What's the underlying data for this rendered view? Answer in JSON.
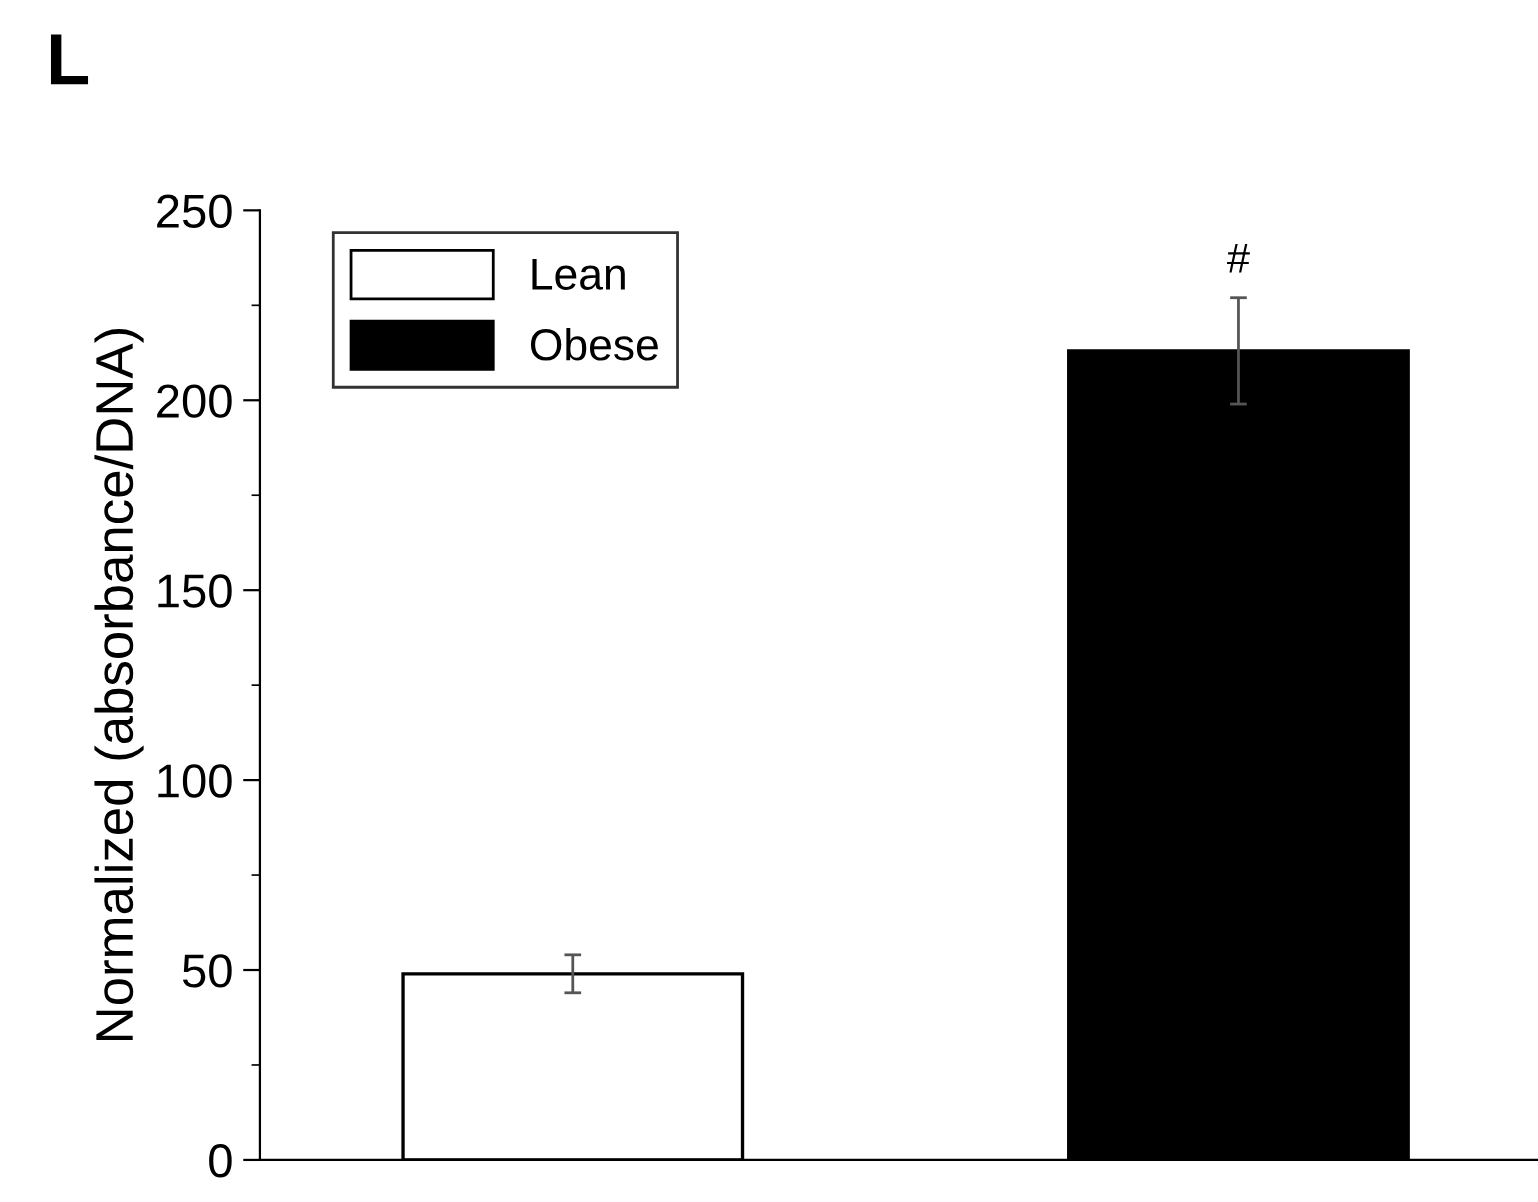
{
  "chart_data": {
    "type": "bar",
    "title": "L",
    "ylabel": "Normalized (absorbance/DNA)",
    "categories": [
      null,
      null
    ],
    "series": [
      {
        "name": "Lean",
        "color": "#ffffff",
        "values": [
          49,
          null
        ],
        "errors": [
          5,
          null
        ]
      },
      {
        "name": "Obese",
        "color": "#000000",
        "values": [
          null,
          213
        ],
        "errors": [
          null,
          14
        ]
      }
    ],
    "ylim": [
      0,
      250
    ],
    "yticks": [
      0,
      50,
      100,
      150,
      200,
      250
    ],
    "grid": false,
    "legend": "top left",
    "annotations": [
      "#"
    ]
  }
}
